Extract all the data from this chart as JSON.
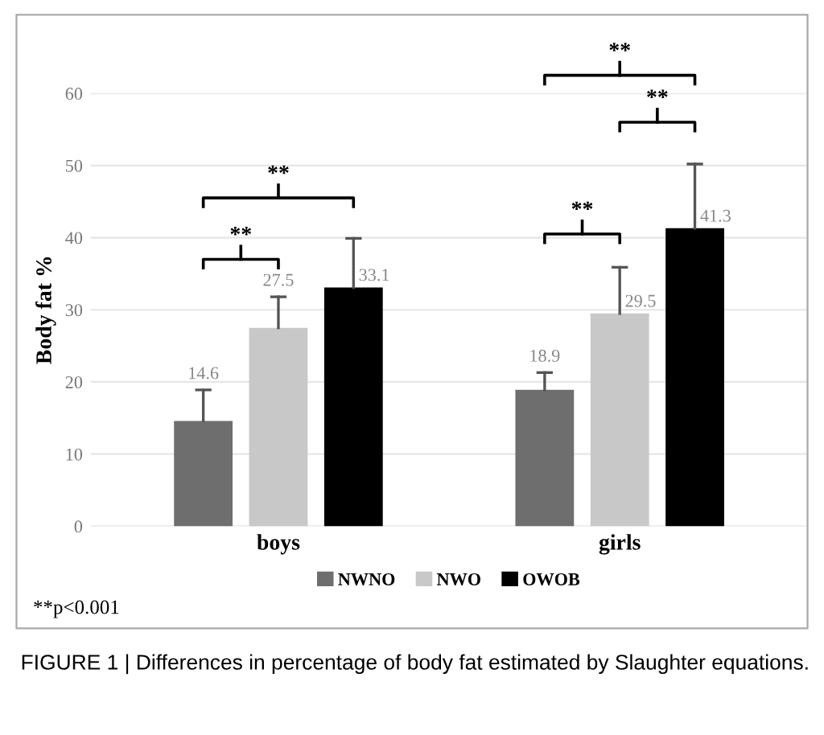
{
  "chart_data": {
    "type": "bar",
    "ylabel": "Body fat %",
    "categories": [
      "boys",
      "girls"
    ],
    "series": [
      {
        "name": "NWNO",
        "color": "#6e6e6e",
        "values": [
          14.6,
          18.9
        ],
        "errors": [
          [
            14.6,
            18.9
          ],
          [
            18.9,
            21.3
          ]
        ]
      },
      {
        "name": "NWO",
        "color": "#c8c8c8",
        "values": [
          27.5,
          29.5
        ],
        "errors": [
          [
            27.5,
            31.8
          ],
          [
            29.5,
            35.9
          ]
        ]
      },
      {
        "name": "OWOB",
        "color": "#000000",
        "values": [
          33.1,
          41.3
        ],
        "errors": [
          [
            33.1,
            39.9
          ],
          [
            41.3,
            50.2
          ]
        ]
      }
    ],
    "ylim": [
      0,
      60
    ],
    "yticks": [
      0,
      10,
      20,
      30,
      40,
      50,
      60
    ],
    "grid": "y",
    "legend": "bottom",
    "data_labels": true,
    "annotations": [
      "**",
      "**",
      "**",
      "**",
      "**",
      "**p<0.001",
      "FIGURE 1 | Differences in percentage of body fat estimated by Slaughter equations."
    ]
  }
}
